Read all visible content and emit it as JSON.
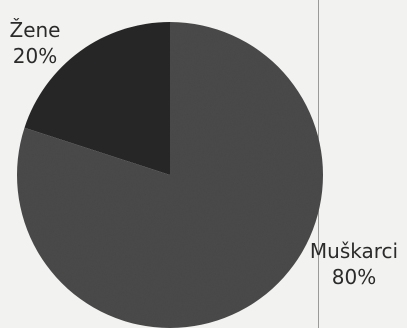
{
  "chart_data": {
    "type": "pie",
    "slices": [
      {
        "label": "Žene",
        "value": 20,
        "value_label": "20%",
        "color": "#262626"
      },
      {
        "label": "Muškarci",
        "value": 80,
        "value_label": "80%",
        "color": "#4a4a4a"
      }
    ],
    "legend": "none",
    "start_angle_deg": 0,
    "direction": "clockwise"
  }
}
